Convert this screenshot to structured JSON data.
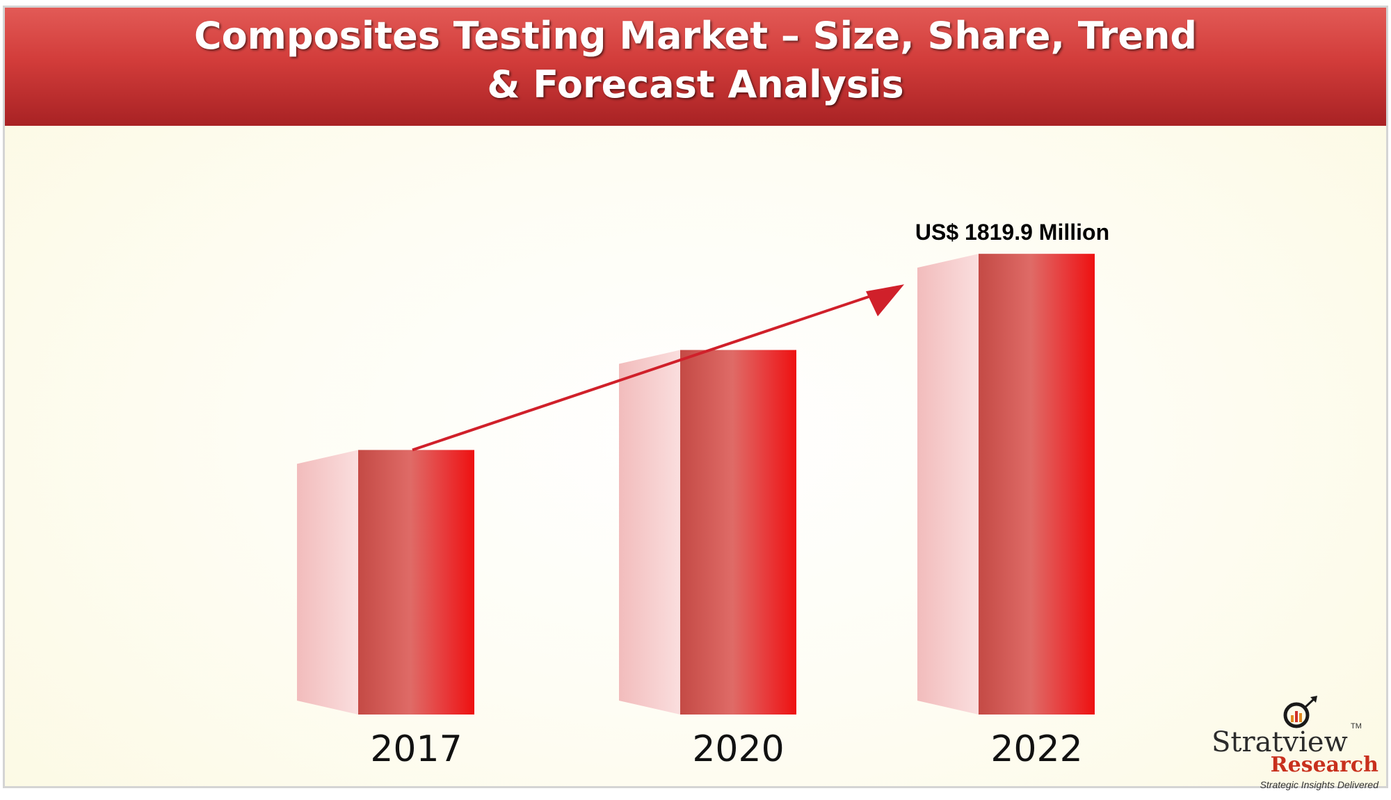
{
  "title": {
    "line1": "Composites Testing Market – Size, Share, Trend",
    "line2": "& Forecast Analysis"
  },
  "chart_data": {
    "type": "bar",
    "categories": [
      "2017",
      "2020",
      "2022"
    ],
    "values": [
      1045,
      1440,
      1819.9
    ],
    "ylim": [
      0,
      1900
    ],
    "data_labels": [
      "",
      "",
      "US$ 1819.9 Million"
    ],
    "trend_arrow": true,
    "grid": false,
    "colors": {
      "bar_front_dark": "#c44a45",
      "bar_front_mid": "#df6b67",
      "bar_front_bright": "#ee1111",
      "bar_side": "#f6c8c8",
      "arrow": "#d0202a",
      "label_text": "#000000"
    }
  },
  "logo": {
    "brand": "Stratview",
    "tm": "TM",
    "research": "Research",
    "tagline": "Strategic Insights Delivered",
    "icon": "magnifier-chart-icon"
  }
}
